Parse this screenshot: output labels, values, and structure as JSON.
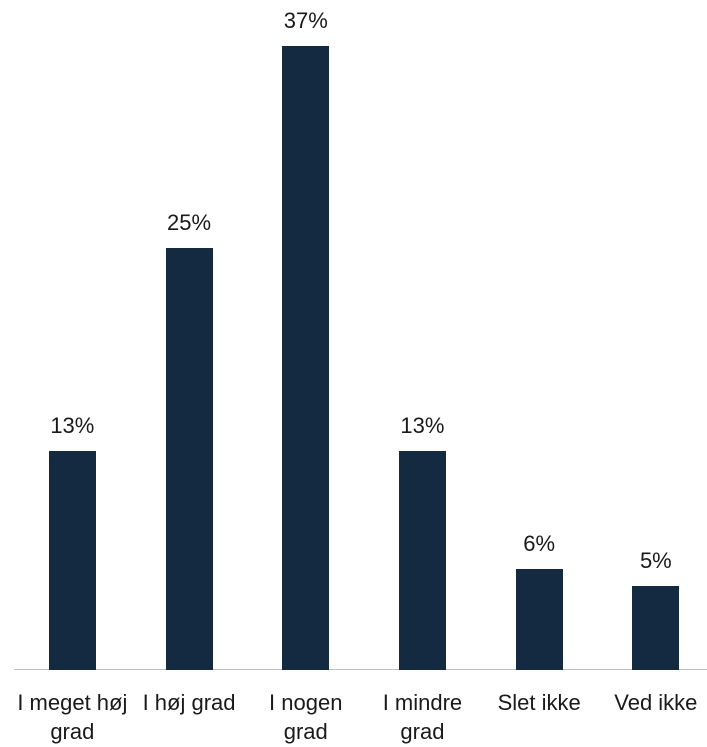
{
  "chart_data": {
    "type": "bar",
    "categories": [
      "I meget høj grad",
      "I høj grad",
      "I nogen grad",
      "I mindre grad",
      "Slet ikke",
      "Ved ikke"
    ],
    "values": [
      13,
      25,
      37,
      13,
      6,
      5
    ],
    "value_labels": [
      "13%",
      "25%",
      "37%",
      "13%",
      "6%",
      "5%"
    ],
    "color": "#132a40"
  }
}
